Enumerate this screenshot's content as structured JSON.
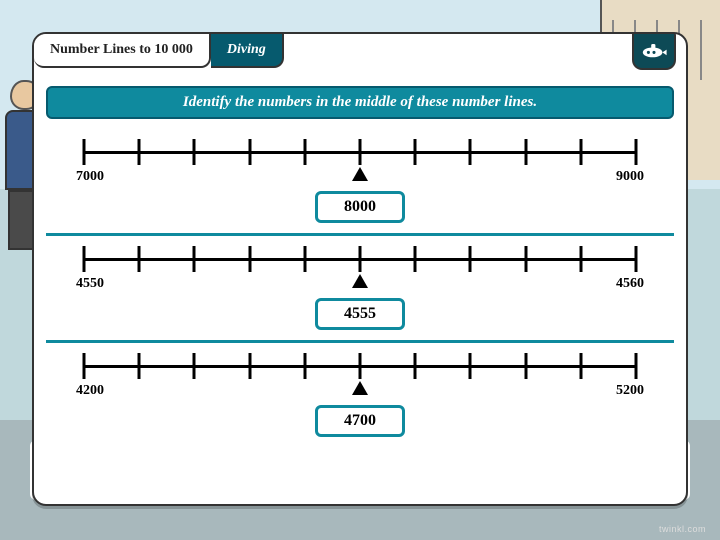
{
  "header": {
    "title": "Number Lines to 10 000",
    "level": "Diving"
  },
  "instruction": "Identify the numbers in the middle of these number lines.",
  "colors": {
    "teal": "#0f8a9e",
    "teal_dark": "#065a6e",
    "card_bg": "#ffffff",
    "border": "#333333",
    "tick": "#000000"
  },
  "numberlines": [
    {
      "start": "7000",
      "end": "9000",
      "answer": "8000",
      "ticks": 11
    },
    {
      "start": "4550",
      "end": "4560",
      "answer": "4555",
      "ticks": 11
    },
    {
      "start": "4200",
      "end": "5200",
      "answer": "4700",
      "ticks": 11
    }
  ],
  "watermark": "twinkl.com"
}
